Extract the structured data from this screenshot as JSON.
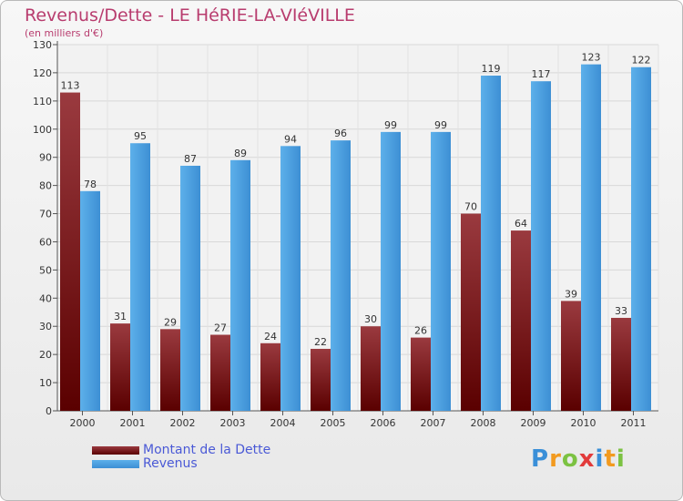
{
  "chart_data": {
    "type": "bar",
    "title": "Revenus/Dette - LE HéRIE-LA-VIéVILLE",
    "subtitle": "(en milliers d'€)",
    "categories": [
      "2000",
      "2001",
      "2002",
      "2003",
      "2004",
      "2005",
      "2006",
      "2007",
      "2008",
      "2009",
      "2010",
      "2011"
    ],
    "series": [
      {
        "name": "Montant de la Dette",
        "color": "#8b1a1a",
        "values": [
          113,
          31,
          29,
          27,
          24,
          22,
          30,
          26,
          70,
          64,
          39,
          33
        ]
      },
      {
        "name": "Revenus",
        "color": "#4ba3e3",
        "values": [
          78,
          95,
          87,
          89,
          94,
          96,
          99,
          99,
          119,
          117,
          123,
          122
        ]
      }
    ],
    "ylim": [
      0,
      130
    ],
    "yticks": [
      0,
      10,
      20,
      30,
      40,
      50,
      60,
      70,
      80,
      90,
      100,
      110,
      120,
      130
    ],
    "grid": true,
    "legend_position": "bottom-left"
  },
  "logo": {
    "letters": [
      "P",
      "r",
      "o",
      "x",
      "i",
      "t",
      "i"
    ],
    "colors": [
      "#3a8fd8",
      "#f29a1f",
      "#7cc242",
      "#e23b3b",
      "#3a8fd8",
      "#f29a1f",
      "#7cc242"
    ]
  }
}
